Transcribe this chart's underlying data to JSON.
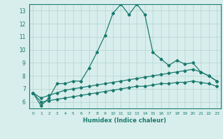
{
  "xlabel": "Humidex (Indice chaleur)",
  "x": [
    0,
    1,
    2,
    3,
    4,
    5,
    6,
    7,
    8,
    9,
    10,
    11,
    12,
    13,
    14,
    15,
    16,
    17,
    18,
    19,
    20,
    21,
    22,
    23
  ],
  "line1": [
    6.7,
    5.7,
    6.3,
    7.4,
    7.4,
    7.6,
    7.6,
    8.6,
    9.8,
    11.1,
    12.8,
    13.5,
    12.7,
    13.5,
    12.7,
    9.8,
    9.3,
    8.8,
    9.2,
    8.9,
    9.0,
    8.3,
    8.0,
    7.6
  ],
  "line2": [
    6.7,
    6.3,
    6.5,
    6.7,
    6.9,
    7.0,
    7.1,
    7.2,
    7.3,
    7.4,
    7.5,
    7.6,
    7.7,
    7.8,
    7.9,
    8.0,
    8.1,
    8.2,
    8.3,
    8.4,
    8.5,
    8.3,
    8.0,
    7.6
  ],
  "line3": [
    6.7,
    6.0,
    6.1,
    6.2,
    6.3,
    6.4,
    6.5,
    6.6,
    6.7,
    6.8,
    6.9,
    7.0,
    7.1,
    7.2,
    7.2,
    7.3,
    7.4,
    7.4,
    7.5,
    7.5,
    7.6,
    7.5,
    7.4,
    7.2
  ],
  "ylim": [
    5.5,
    13.5
  ],
  "xlim": [
    -0.5,
    23.5
  ],
  "yticks": [
    6,
    7,
    8,
    9,
    10,
    11,
    12,
    13
  ],
  "xticks": [
    0,
    1,
    2,
    3,
    4,
    5,
    6,
    7,
    8,
    9,
    10,
    11,
    12,
    13,
    14,
    15,
    16,
    17,
    18,
    19,
    20,
    21,
    22,
    23
  ],
  "line_color": "#1a7a6e",
  "bg_color": "#d8eeec",
  "grid_color": "#b0d4d0",
  "marker": "D",
  "markersize": 2.0,
  "linewidth": 0.9
}
